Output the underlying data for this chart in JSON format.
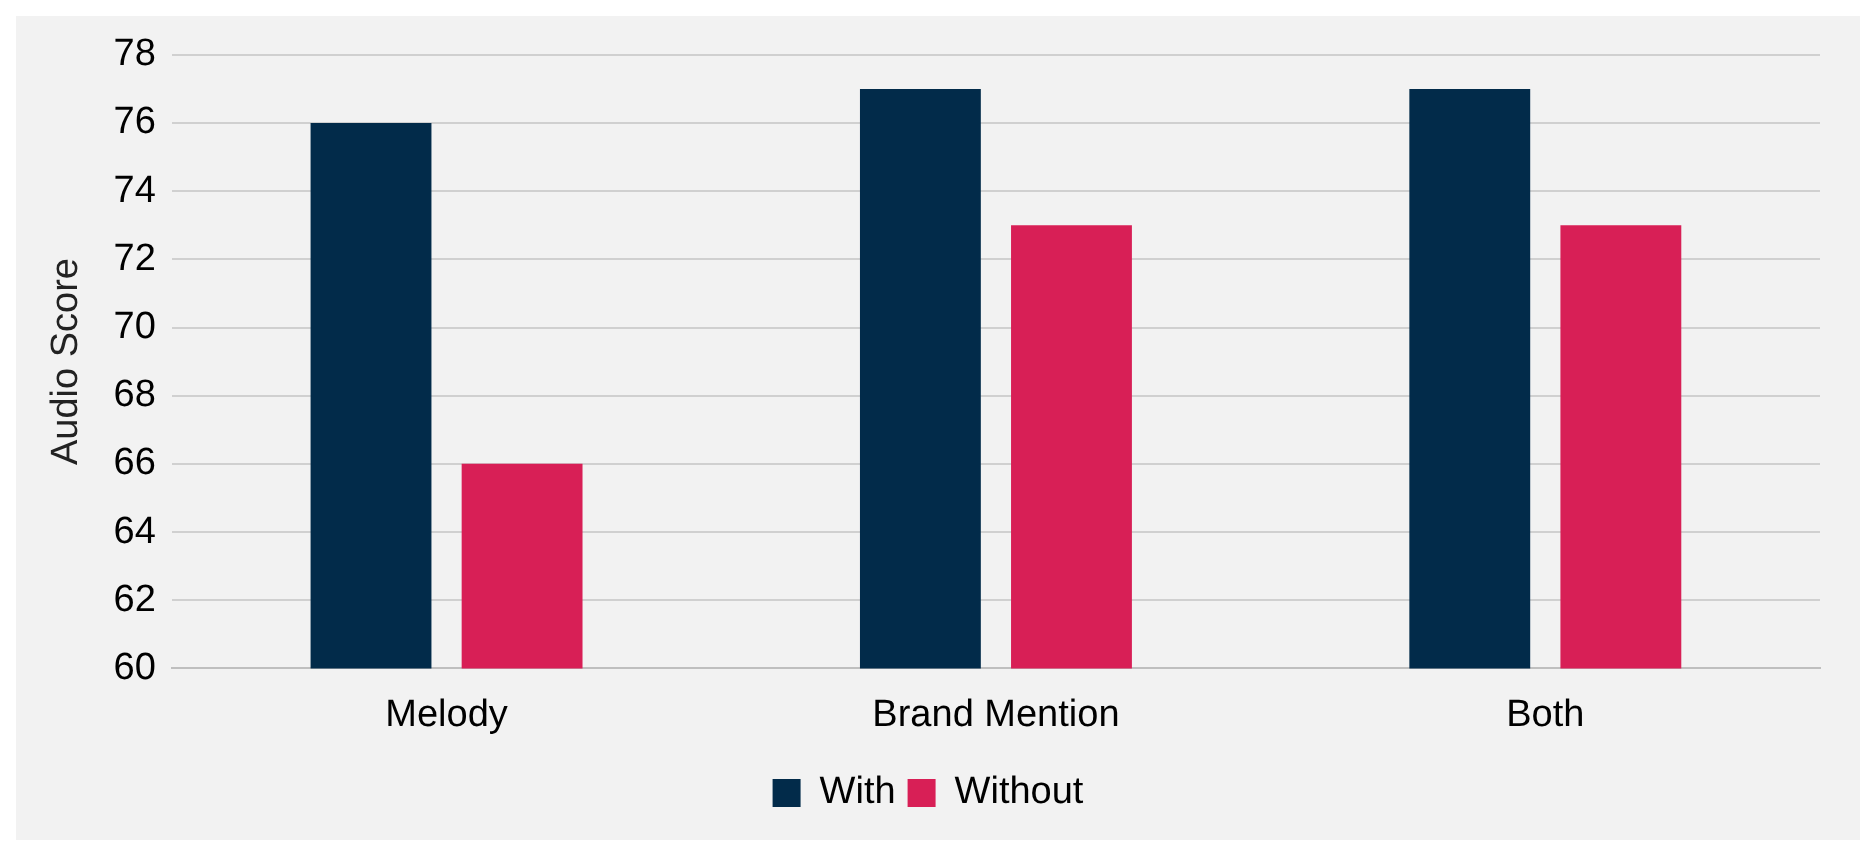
{
  "chart_data": {
    "type": "bar",
    "ylabel": "Audio Score",
    "categories": [
      "Melody",
      "Brand Mention",
      "Both"
    ],
    "series": [
      {
        "name": "With",
        "color": "#022b4a",
        "values": [
          76,
          77,
          77
        ]
      },
      {
        "name": "Without",
        "color": "#d81f56",
        "values": [
          66,
          73,
          73
        ]
      }
    ],
    "ylim": [
      60,
      78
    ],
    "yticks": [
      60,
      62,
      64,
      66,
      68,
      70,
      72,
      74,
      76,
      78
    ],
    "grid": "y",
    "legend": "bottom"
  }
}
